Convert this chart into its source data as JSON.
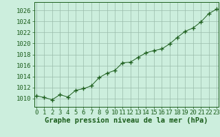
{
  "hours": [
    0,
    1,
    2,
    3,
    4,
    5,
    6,
    7,
    8,
    9,
    10,
    11,
    12,
    13,
    14,
    15,
    16,
    17,
    18,
    19,
    20,
    21,
    22,
    23
  ],
  "pressure": [
    1010.5,
    1010.2,
    1009.8,
    1010.7,
    1010.3,
    1011.5,
    1011.8,
    1012.3,
    1013.8,
    1014.6,
    1015.1,
    1016.5,
    1016.6,
    1017.5,
    1018.3,
    1018.7,
    1019.0,
    1019.9,
    1021.1,
    1022.2,
    1022.8,
    1023.9,
    1025.4,
    1026.2
  ],
  "line_color": "#1a5c1a",
  "marker_color": "#1a5c1a",
  "bg_color": "#cceedd",
  "grid_color": "#99bbaa",
  "xlabel": "Graphe pression niveau de la mer (hPa)",
  "xlabel_color": "#1a5c1a",
  "tick_color": "#1a5c1a",
  "ylim_min": 1008.5,
  "ylim_max": 1027.5,
  "yticks": [
    1010,
    1012,
    1014,
    1016,
    1018,
    1020,
    1022,
    1024,
    1026
  ],
  "xlim_min": -0.3,
  "xlim_max": 23.3,
  "label_fontsize": 7.5,
  "tick_fontsize": 6.5
}
